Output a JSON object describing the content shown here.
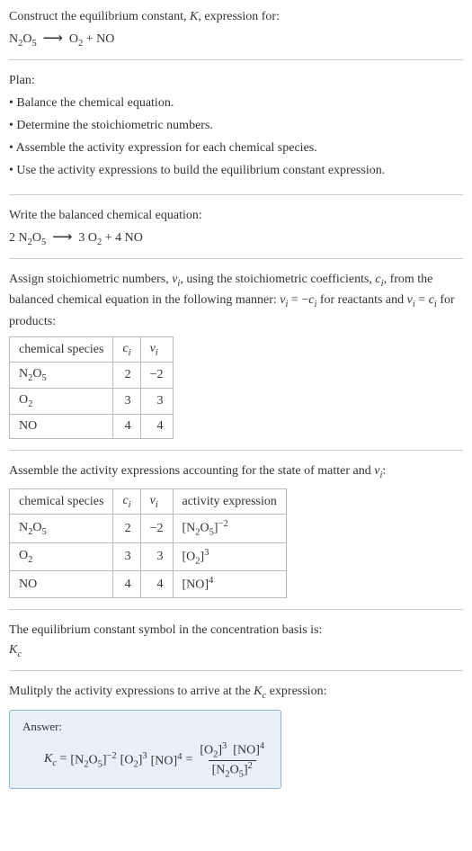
{
  "prompt": {
    "line1_pre": "Construct the equilibrium constant, ",
    "line1_K": "K",
    "line1_post": ", expression for:"
  },
  "reaction1": {
    "r1": "N",
    "r1s": "2",
    "r2": "O",
    "r2s": "5",
    "arrow": "⟶",
    "p1": "O",
    "p1s": "2",
    "plus": " + ",
    "p2": "NO"
  },
  "plan": {
    "title": "Plan:",
    "b1": "• Balance the chemical equation.",
    "b2": "• Determine the stoichiometric numbers.",
    "b3": "• Assemble the activity expression for each chemical species.",
    "b4": "• Use the activity expressions to build the equilibrium constant expression."
  },
  "balanced": {
    "intro": "Write the balanced chemical equation:",
    "c1": "2 ",
    "c2": "3 ",
    "c3": "4 ",
    "arrow": "⟶"
  },
  "assign": {
    "t1": "Assign stoichiometric numbers, ",
    "vi": "ν",
    "visub": "i",
    "t2": ", using the stoichiometric coefficients, ",
    "ci": "c",
    "cisub": "i",
    "t3": ", from the balanced chemical equation in the following manner: ",
    "eq1a": "ν",
    "eq1as": "i",
    "eq1b": " = −",
    "eq1c": "c",
    "eq1cs": "i",
    "t4": " for reactants and ",
    "eq2a": "ν",
    "eq2as": "i",
    "eq2b": " = ",
    "eq2c": "c",
    "eq2cs": "i",
    "t5": " for products:"
  },
  "table1": {
    "h1": "chemical species",
    "h2a": "c",
    "h2b": "i",
    "h3a": "ν",
    "h3b": "i",
    "rows": [
      {
        "sp_a": "N",
        "sp_as": "2",
        "sp_b": "O",
        "sp_bs": "5",
        "c": "2",
        "v": "−2"
      },
      {
        "sp_a": "O",
        "sp_as": "2",
        "sp_b": "",
        "sp_bs": "",
        "c": "3",
        "v": "3"
      },
      {
        "sp_a": "NO",
        "sp_as": "",
        "sp_b": "",
        "sp_bs": "",
        "c": "4",
        "v": "4"
      }
    ]
  },
  "assemble": {
    "t1": "Assemble the activity expressions accounting for the state of matter and ",
    "v": "ν",
    "vs": "i",
    "t2": ":"
  },
  "table2": {
    "h1": "chemical species",
    "h2a": "c",
    "h2b": "i",
    "h3a": "ν",
    "h3b": "i",
    "h4": "activity expression",
    "rows": [
      {
        "sp_a": "N",
        "sp_as": "2",
        "sp_b": "O",
        "sp_bs": "5",
        "c": "2",
        "v": "−2",
        "br_l": "[N",
        "br_ls": "2",
        "br_m": "O",
        "br_ms": "5",
        "br_r": "]",
        "exp": "−2"
      },
      {
        "sp_a": "O",
        "sp_as": "2",
        "sp_b": "",
        "sp_bs": "",
        "c": "3",
        "v": "3",
        "br_l": "[O",
        "br_ls": "2",
        "br_m": "",
        "br_ms": "",
        "br_r": "]",
        "exp": "3"
      },
      {
        "sp_a": "NO",
        "sp_as": "",
        "sp_b": "",
        "sp_bs": "",
        "c": "4",
        "v": "4",
        "br_l": "[NO",
        "br_ls": "",
        "br_m": "",
        "br_ms": "",
        "br_r": "]",
        "exp": "4"
      }
    ]
  },
  "symbol": {
    "t1": "The equilibrium constant symbol in the concentration basis is:",
    "k": "K",
    "ks": "c"
  },
  "multiply": {
    "t1": "Mulitply the activity expressions to arrive at the ",
    "k": "K",
    "ks": "c",
    "t2": " expression:"
  },
  "answer": {
    "label": "Answer:",
    "k": "K",
    "ks": "c",
    "eq": " = ",
    "t_n2o5_l": "[N",
    "t_n2o5_ls": "2",
    "t_n2o5_m": "O",
    "t_n2o5_ms": "5",
    "t_n2o5_r": "]",
    "t_n2o5_e": "−2",
    "t_o2_l": "[O",
    "t_o2_ls": "2",
    "t_o2_r": "]",
    "t_o2_e": "3",
    "t_no_l": "[NO",
    "t_no_r": "]",
    "t_no_e": "4",
    "eq2": " = ",
    "num_o2_l": "[O",
    "num_o2_ls": "2",
    "num_o2_r": "]",
    "num_o2_e": "3",
    "num_no_l": "[NO",
    "num_no_r": "]",
    "num_no_e": "4",
    "den_l": "[N",
    "den_ls": "2",
    "den_m": "O",
    "den_ms": "5",
    "den_r": "]",
    "den_e": "2"
  },
  "colors": {
    "border": "#cccccc",
    "table_border": "#bbbbbb",
    "answer_bg": "#e8f1f7",
    "answer_border": "#8db4cc",
    "text": "#333333"
  }
}
